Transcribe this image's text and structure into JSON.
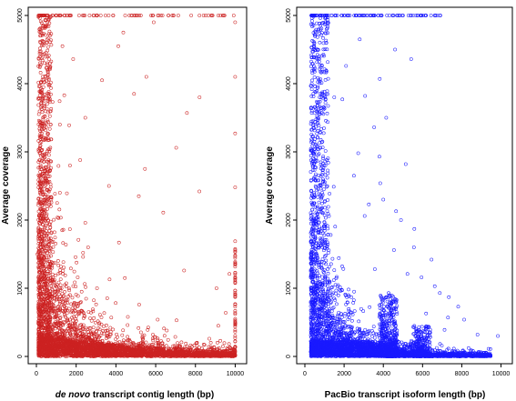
{
  "chart_data": [
    {
      "type": "scatter",
      "point_style": "open-circle",
      "color": "#cc2222",
      "xlabel_italic": "de novo",
      "xlabel_rest": " transcript contig length (bp)",
      "ylabel": "Average coverage",
      "xlim": [
        0,
        10300
      ],
      "ylim": [
        0,
        5000
      ],
      "xticks": [
        0,
        2000,
        4000,
        6000,
        8000,
        10000
      ],
      "yticks": [
        0,
        1000,
        2000,
        3000,
        4000,
        5000
      ],
      "grid": false,
      "points": [
        [
          0,
          1500
        ],
        [
          1080,
          950
        ],
        [
          1195,
          1000
        ],
        [
          1040,
          1050
        ],
        [
          1180,
          2400
        ],
        [
          1690,
          2800
        ],
        [
          1310,
          4550
        ],
        [
          4120,
          4550
        ],
        [
          1180,
          3400
        ],
        [
          1650,
          3390
        ],
        [
          4910,
          3850
        ],
        [
          7570,
          3570
        ],
        [
          8210,
          3800
        ],
        [
          8200,
          2420
        ],
        [
          3050,
          1000
        ],
        [
          4450,
          1150
        ],
        [
          9060,
          1000
        ],
        [
          7050,
          530
        ],
        [
          950,
          950
        ],
        [
          1475,
          820
        ],
        [
          1840,
          525
        ],
        [
          2080,
          1160
        ],
        [
          3680,
          1130
        ],
        [
          4150,
          1670
        ],
        [
          4370,
          4750
        ],
        [
          5150,
          2350
        ],
        [
          2700,
          560
        ],
        [
          5460,
          2750
        ],
        [
          6380,
          2110
        ],
        [
          7430,
          1260
        ],
        [
          9710,
          1210
        ],
        [
          9150,
          450
        ],
        [
          8700,
          260
        ],
        [
          9250,
          230
        ],
        [
          6560,
          380
        ],
        [
          5600,
          390
        ],
        [
          9520,
          640
        ],
        [
          6100,
          540
        ],
        [
          5170,
          760
        ],
        [
          4600,
          580
        ],
        [
          3180,
          130
        ],
        [
          2460,
          1960
        ],
        [
          2350,
          1520
        ],
        [
          2600,
          1600
        ],
        [
          5900,
          4900
        ],
        [
          2460,
          3500
        ],
        [
          3650,
          2500
        ],
        [
          1850,
          4360
        ],
        [
          3300,
          4050
        ],
        [
          1400,
          3830
        ],
        [
          10000,
          4900
        ],
        [
          10000,
          4100
        ],
        [
          10000,
          3270
        ],
        [
          10000,
          2480
        ],
        [
          10000,
          1690
        ],
        [
          10000,
          1360
        ],
        [
          10000,
          1100
        ],
        [
          10000,
          760
        ],
        [
          10000,
          500
        ],
        [
          10000,
          140
        ],
        [
          7030,
          3060
        ],
        [
          5530,
          4100
        ],
        [
          2200,
          2880
        ]
      ]
    },
    {
      "type": "scatter",
      "point_style": "open-circle",
      "color": "#1a1aff",
      "xlabel": "PacBio transcript isoform length (bp)",
      "ylabel": "Average coverage",
      "xlim": [
        0,
        10300
      ],
      "ylim": [
        0,
        5000
      ],
      "xticks": [
        0,
        2000,
        4000,
        6000,
        8000,
        10000
      ],
      "yticks": [
        0,
        1000,
        2000,
        3000,
        4000,
        5000
      ],
      "grid": false,
      "points": [
        [
          5420,
          4360
        ],
        [
          3820,
          4070
        ],
        [
          3070,
          3820
        ],
        [
          1910,
          3770
        ],
        [
          3530,
          3360
        ],
        [
          3800,
          2930
        ],
        [
          3840,
          2540
        ],
        [
          4900,
          2000
        ],
        [
          4650,
          2130
        ],
        [
          5580,
          1870
        ],
        [
          4540,
          1560
        ],
        [
          5560,
          1600
        ],
        [
          6460,
          1420
        ],
        [
          5230,
          1210
        ],
        [
          6880,
          930
        ],
        [
          7340,
          870
        ],
        [
          8120,
          540
        ],
        [
          9840,
          300
        ],
        [
          5140,
          2820
        ],
        [
          4150,
          3500
        ],
        [
          4000,
          2300
        ],
        [
          4700,
          740
        ],
        [
          7300,
          570
        ],
        [
          4600,
          4500
        ],
        [
          2100,
          4260
        ],
        [
          2500,
          2650
        ],
        [
          3260,
          2230
        ],
        [
          2720,
          2980
        ],
        [
          3050,
          2060
        ],
        [
          5950,
          1160
        ],
        [
          6180,
          630
        ],
        [
          7820,
          730
        ],
        [
          8800,
          320
        ],
        [
          7120,
          390
        ],
        [
          2800,
          4650
        ],
        [
          1500,
          3800
        ],
        [
          4270,
          930
        ],
        [
          6620,
          1030
        ],
        [
          3570,
          1280
        ]
      ]
    }
  ]
}
